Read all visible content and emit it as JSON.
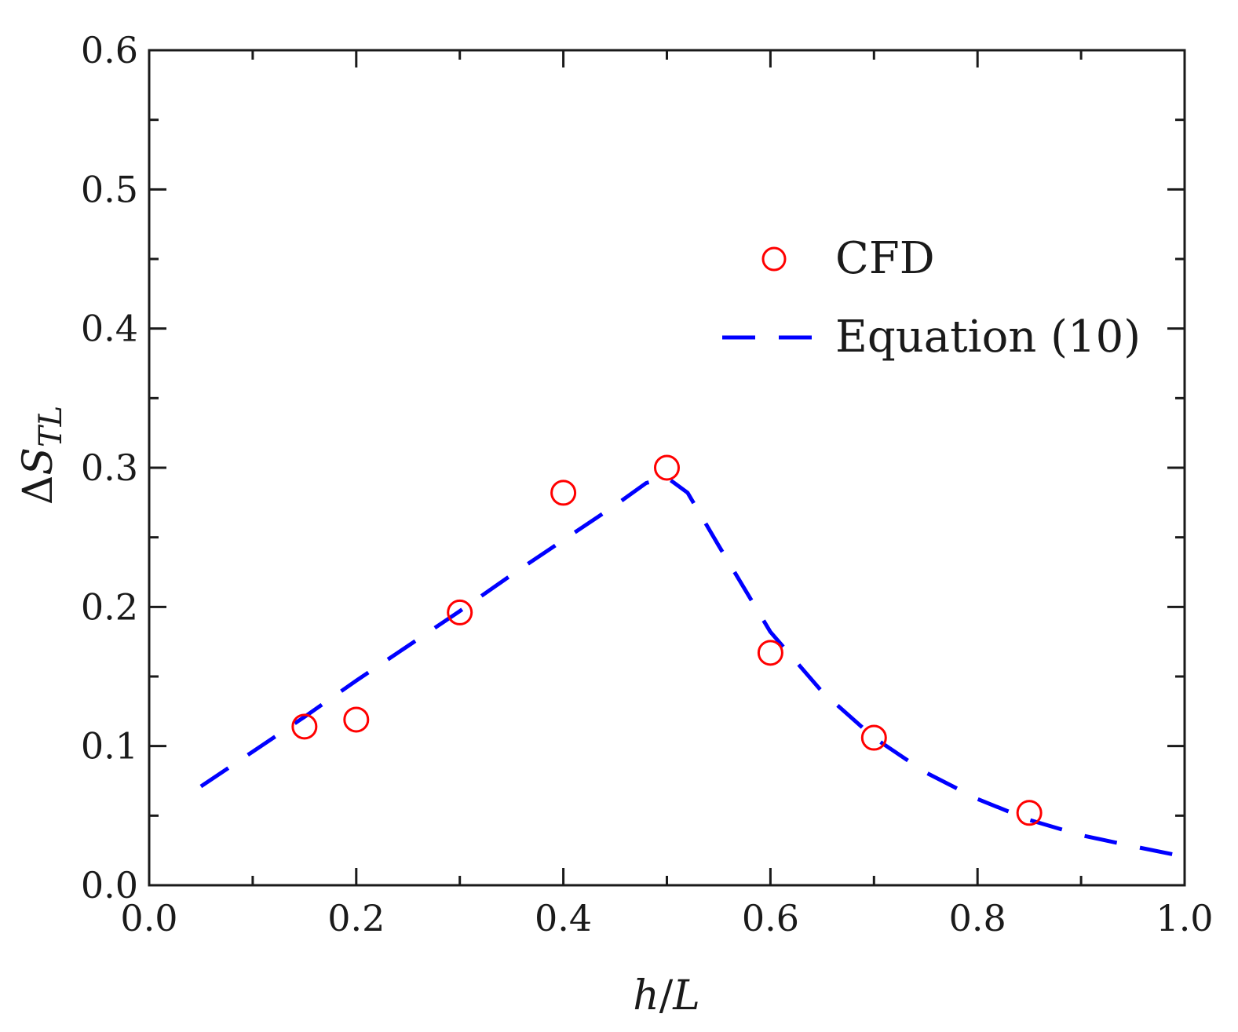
{
  "chart_data": {
    "type": "scatter",
    "title": "",
    "xlabel": "h/L",
    "xlabel_parts": {
      "var1": "h",
      "sep": "/",
      "var2": "L"
    },
    "ylabel": "ΔS_TL",
    "ylabel_parts": {
      "delta": "Δ",
      "symbol": "S",
      "subscript": "TL"
    },
    "xlim": [
      0.0,
      1.0
    ],
    "ylim": [
      0.0,
      0.6
    ],
    "x_ticks": [
      0.0,
      0.2,
      0.4,
      0.6,
      0.8,
      1.0
    ],
    "x_tick_labels": [
      "0.0",
      "0.2",
      "0.4",
      "0.6",
      "0.8",
      "1.0"
    ],
    "y_ticks": [
      0.0,
      0.1,
      0.2,
      0.3,
      0.4,
      0.5,
      0.6
    ],
    "y_tick_labels": [
      "0.0",
      "0.1",
      "0.2",
      "0.3",
      "0.4",
      "0.5",
      "0.6"
    ],
    "grid": false,
    "legend_position": "top-right",
    "series": [
      {
        "name": "CFD",
        "style": "markers-open-circle",
        "color": "#ff0000",
        "x": [
          0.15,
          0.2,
          0.3,
          0.4,
          0.5,
          0.6,
          0.7,
          0.85
        ],
        "y": [
          0.114,
          0.119,
          0.196,
          0.282,
          0.3,
          0.167,
          0.106,
          0.052
        ]
      },
      {
        "name": "Equation (10)",
        "style": "dashed-line",
        "color": "#0000ff",
        "x": [
          0.05,
          0.1,
          0.15,
          0.2,
          0.25,
          0.3,
          0.35,
          0.4,
          0.45,
          0.48,
          0.5,
          0.52,
          0.55,
          0.6,
          0.65,
          0.7,
          0.75,
          0.8,
          0.85,
          0.9,
          0.95,
          0.99
        ],
        "y": [
          0.071,
          0.096,
          0.121,
          0.147,
          0.172,
          0.197,
          0.223,
          0.248,
          0.273,
          0.289,
          0.293,
          0.282,
          0.244,
          0.182,
          0.139,
          0.106,
          0.081,
          0.062,
          0.047,
          0.036,
          0.028,
          0.022
        ]
      }
    ]
  }
}
